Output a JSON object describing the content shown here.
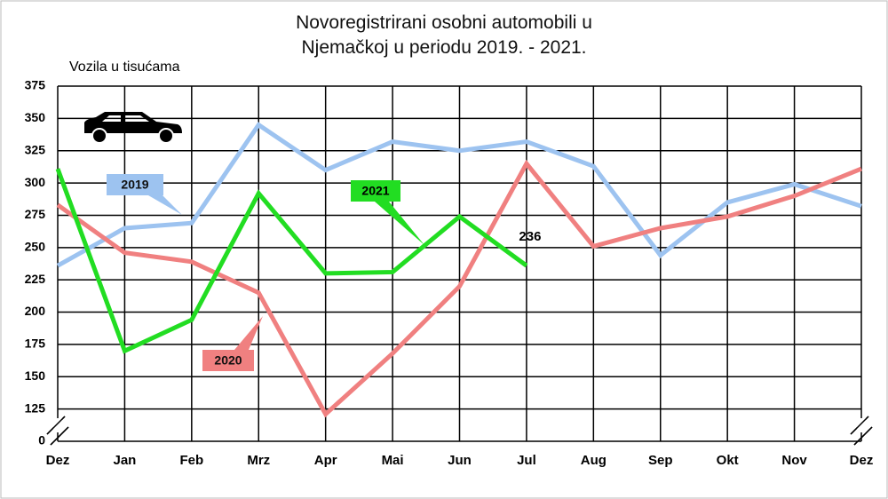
{
  "chart_data": {
    "type": "line",
    "title": "Novoregistrirani osobni automobili u Njemačkoj u periodu 2019. - 2021.",
    "y_label": "Vozila u tisućama",
    "categories": [
      "Dez",
      "Jan",
      "Feb",
      "Mrz",
      "Apr",
      "Mai",
      "Jun",
      "Jul",
      "Aug",
      "Sep",
      "Okt",
      "Nov",
      "Dez"
    ],
    "series": [
      {
        "name": "2019",
        "color": "#9dc3f0",
        "values": [
          236,
          265,
          269,
          345,
          310,
          332,
          325,
          332,
          313,
          244,
          285,
          299,
          282
        ]
      },
      {
        "name": "2020",
        "color": "#f08080",
        "values": [
          283,
          246,
          239,
          215,
          121,
          168,
          220,
          315,
          251,
          265,
          274,
          290,
          311
        ]
      },
      {
        "name": "2021",
        "color": "#22dd22",
        "values": [
          311,
          170,
          194,
          292,
          230,
          231,
          274,
          236,
          null,
          null,
          null,
          null,
          null
        ]
      }
    ],
    "annotations": [
      {
        "text": "236",
        "series": 2,
        "index": 7
      }
    ],
    "ylim": [
      0,
      375
    ],
    "yticks": [
      0,
      125,
      150,
      175,
      200,
      225,
      250,
      275,
      300,
      325,
      350,
      375
    ],
    "axis_break": [
      0,
      100
    ],
    "grid": true
  }
}
